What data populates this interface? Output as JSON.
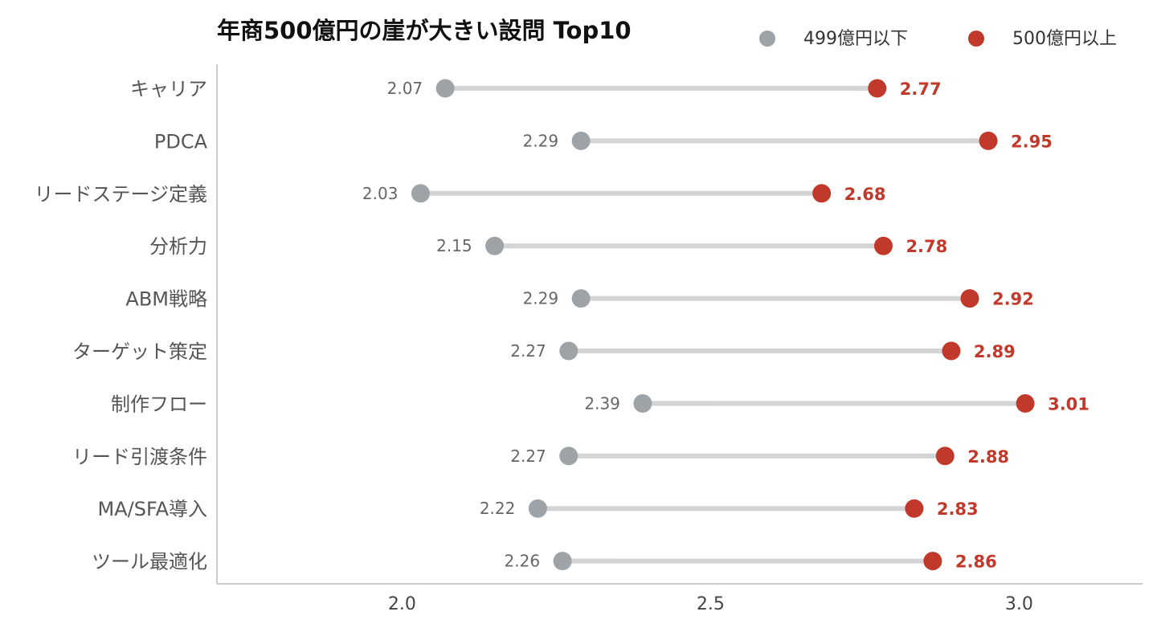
{
  "chart_data": {
    "type": "dumbbell",
    "title": "年商500億円の崖が大きい設問 Top10",
    "xlabel": "",
    "ylabel": "",
    "xlim": [
      1.7,
      3.2
    ],
    "xticks": [
      "2.0",
      "2.5",
      "3.0"
    ],
    "xtick_values": [
      2.0,
      2.5,
      3.0
    ],
    "grid": false,
    "legend_position": "top-right",
    "categories": [
      "キャリア",
      "PDCA",
      "リードステージ定義",
      "分析力",
      "ABM戦略",
      "ターゲット策定",
      "制作フロー",
      "リード引渡条件",
      "MA/SFA導入",
      "ツール最適化"
    ],
    "series": [
      {
        "name": "499億円以下",
        "color": "#9ea3a8",
        "values": [
          2.07,
          2.29,
          2.03,
          2.15,
          2.29,
          2.27,
          2.39,
          2.27,
          2.22,
          2.26
        ],
        "labels": [
          "2.07",
          "2.29",
          "2.03",
          "2.15",
          "2.29",
          "2.27",
          "2.39",
          "2.27",
          "2.22",
          "2.26"
        ]
      },
      {
        "name": "500億円以上",
        "color": "#c0392b",
        "values": [
          2.77,
          2.95,
          2.68,
          2.78,
          2.92,
          2.89,
          3.01,
          2.88,
          2.83,
          2.86
        ],
        "labels": [
          "2.77",
          "2.95",
          "2.68",
          "2.78",
          "2.92",
          "2.89",
          "3.01",
          "2.88",
          "2.83",
          "2.86"
        ]
      }
    ],
    "connector_color": "#d3d4d6",
    "axis_color": "#cccccc"
  }
}
